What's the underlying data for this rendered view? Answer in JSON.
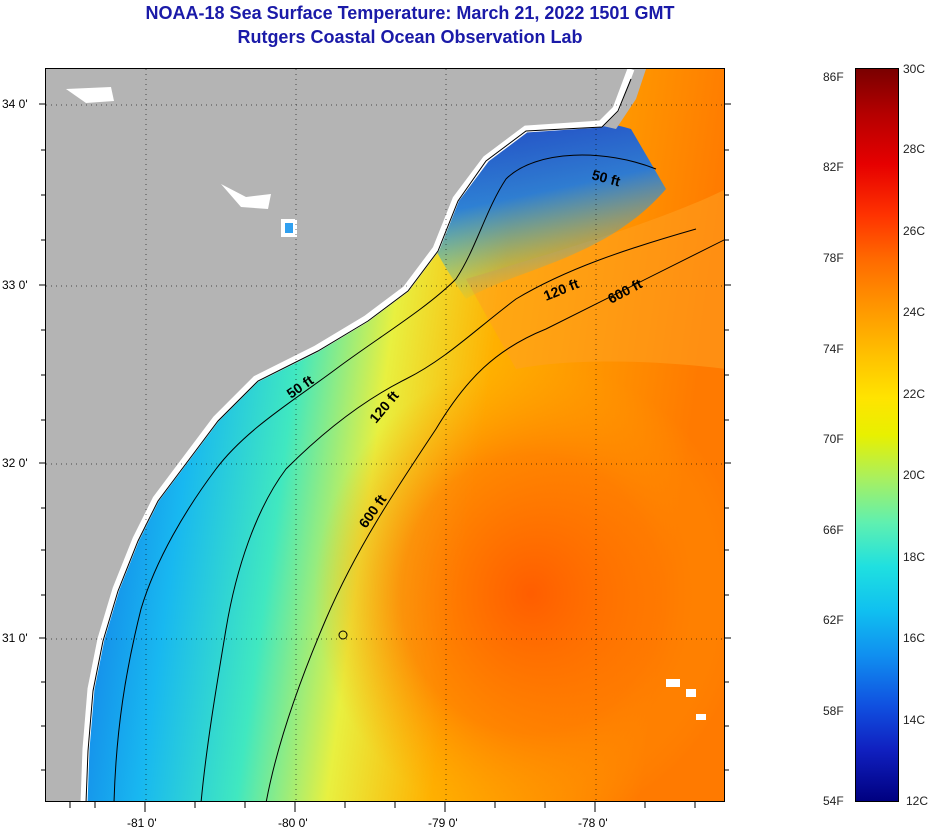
{
  "header": {
    "title": "NOAA-18 Sea Surface Temperature:  March 21, 2022 1501 GMT",
    "subtitle": "Rutgers Coastal Ocean Observation Lab"
  },
  "map": {
    "lon_range": [
      -81.5,
      -77.0
    ],
    "lat_range": [
      30.2,
      34.2
    ],
    "lon_ticks": [
      "-81 0'",
      "-80 0'",
      "-79 0'",
      "-78 0'"
    ],
    "lat_ticks": [
      "34 0'",
      "33 0'",
      "32 0'",
      "31 0'"
    ],
    "grid": "dotted",
    "colors": {
      "land": "#b4b4b4",
      "cloud": "#ffffff",
      "contour": "#000000",
      "cold": "#1040e0",
      "warm": "#ff6a00"
    },
    "contours": [
      {
        "label": "50 ft",
        "depth_ft": 50
      },
      {
        "label": "120 ft",
        "depth_ft": 120
      },
      {
        "label": "600 ft",
        "depth_ft": 600
      }
    ]
  },
  "colorbar": {
    "fahrenheit": [
      "86F",
      "82F",
      "78F",
      "74F",
      "70F",
      "66F",
      "62F",
      "58F",
      "54F"
    ],
    "celsius": [
      "30C",
      "28C",
      "26C",
      "24C",
      "22C",
      "20C",
      "18C",
      "16C",
      "14C",
      "12C"
    ]
  }
}
